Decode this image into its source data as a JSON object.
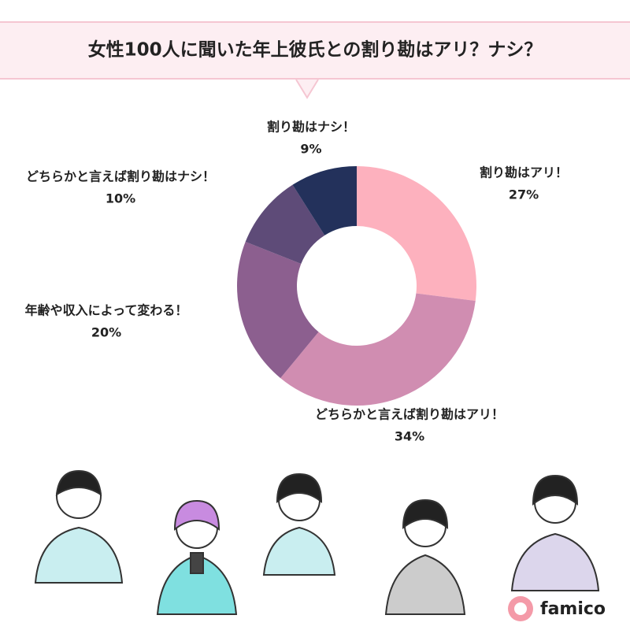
{
  "chart_data": {
    "type": "donut",
    "title": "女性100人に聞いた年上彼氏との割り勘はアリ？ナシ？",
    "categories": [
      "割り勘はアリ！",
      "どちらかと言えば割り勘はアリ！",
      "年齢や収入によって変わる！",
      "どちらかと言えば割り勘はナシ！",
      "割り勘はナシ！"
    ],
    "values": [
      27,
      34,
      20,
      10,
      9
    ],
    "value_labels": [
      "27%",
      "34%",
      "20%",
      "10%",
      "9%"
    ],
    "colors": [
      "#fdb1be",
      "#d08db1",
      "#8c5f8f",
      "#5e4b78",
      "#23315b"
    ]
  },
  "logo": {
    "text": "famico"
  }
}
